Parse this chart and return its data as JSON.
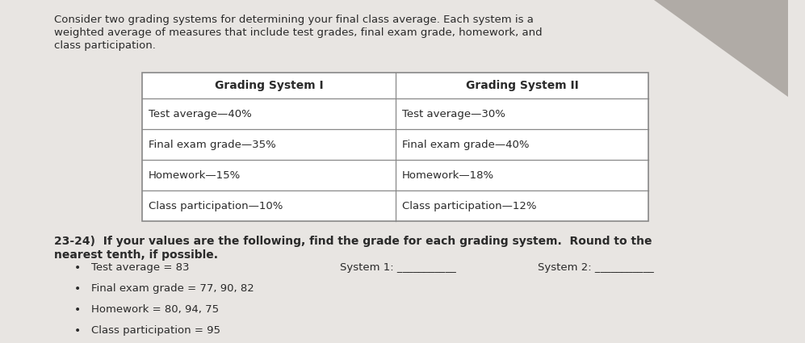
{
  "bg_color": "#e8e5e2",
  "page_color": "#f5f4f2",
  "corner_color": "#b0aba6",
  "intro_text_lines": [
    "Consider two grading systems for determining your final class average. Each system is a",
    "weighted average of measures that include test grades, final exam grade, homework, and",
    "class participation."
  ],
  "table_header": [
    "Grading System I",
    "Grading System II"
  ],
  "table_rows": [
    [
      "Test average—40%",
      "Test average—30%"
    ],
    [
      "Final exam grade—35%",
      "Final exam grade—40%"
    ],
    [
      "Homework—15%",
      "Homework—18%"
    ],
    [
      "Class participation—10%",
      "Class participation—12%"
    ]
  ],
  "problem_text": "23-24)  If your values are the following, find the grade for each grading system.  Round to the",
  "problem_text2": "nearest tenth, if possible.",
  "bullet_items": [
    "Test average = 83",
    "Final exam grade = 77, 90, 82",
    "Homework = 80, 94, 75",
    "Class participation = 95"
  ],
  "system1_label": "System 1: ___________",
  "system2_label": "System 2: ___________",
  "text_color": "#2a2a2a",
  "table_border_color": "#888888",
  "intro_font_size": 9.5,
  "header_font_size": 10,
  "body_font_size": 9.5,
  "problem_font_size": 10,
  "bullet_font_size": 9.5
}
